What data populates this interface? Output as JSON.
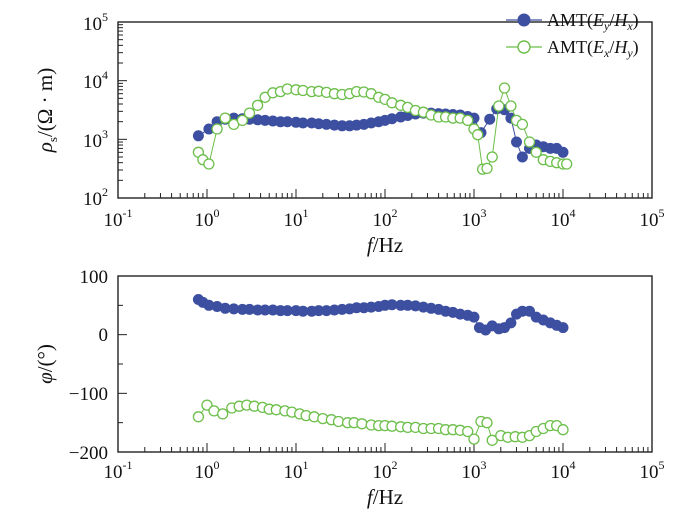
{
  "colors": {
    "ey_hx": "#3d4fa0",
    "ex_hy": "#6cbf4a"
  },
  "legend": {
    "entries": [
      {
        "label_prefix": "AMT(",
        "label_num": "E",
        "label_num_sub": "y",
        "label_slash": "/",
        "label_den": "H",
        "label_den_sub": "x",
        "label_suffix": ")",
        "marker": "filled-circle"
      },
      {
        "label_prefix": "AMT(",
        "label_num": "E",
        "label_num_sub": "x",
        "label_slash": "/",
        "label_den": "H",
        "label_den_sub": "y",
        "label_suffix": ")",
        "marker": "open-circle"
      }
    ]
  },
  "chart_data": [
    {
      "type": "scatter",
      "xscale": "log",
      "yscale": "log",
      "xlim": [
        0.1,
        100000
      ],
      "ylim": [
        100,
        100000
      ],
      "xlabel": {
        "italic": "f",
        "text": "/Hz"
      },
      "ylabel": {
        "sym": "ρ",
        "sub": "s",
        "text": "/(Ω · m)"
      },
      "xticks": [
        {
          "base": "10",
          "exp": "-1"
        },
        {
          "base": "10",
          "exp": "0"
        },
        {
          "base": "10",
          "exp": "1"
        },
        {
          "base": "10",
          "exp": "2"
        },
        {
          "base": "10",
          "exp": "3"
        },
        {
          "base": "10",
          "exp": "4"
        },
        {
          "base": "10",
          "exp": "5"
        }
      ],
      "yticks": [
        {
          "base": "10",
          "exp": "2"
        },
        {
          "base": "10",
          "exp": "3"
        },
        {
          "base": "10",
          "exp": "4"
        },
        {
          "base": "10",
          "exp": "5"
        }
      ],
      "series": [
        {
          "name": "AMT(Ey/Hx)",
          "marker": "filled",
          "x": [
            0.8,
            1.05,
            1.3,
            1.6,
            2.0,
            2.5,
            3.0,
            3.7,
            4.5,
            5.5,
            6.7,
            8.0,
            10,
            12,
            15,
            18,
            22,
            27,
            33,
            40,
            48,
            58,
            70,
            85,
            100,
            120,
            150,
            180,
            220,
            270,
            330,
            400,
            480,
            580,
            700,
            850,
            1000,
            1200,
            1500,
            1800,
            2200,
            2600,
            3000,
            3500,
            4200,
            5000,
            6000,
            7200,
            8500,
            10000
          ],
          "y": [
            1150,
            1500,
            2000,
            2200,
            2300,
            2250,
            2200,
            2150,
            2100,
            2050,
            2000,
            2000,
            1950,
            1900,
            1900,
            1850,
            1800,
            1750,
            1700,
            1700,
            1750,
            1800,
            1900,
            2000,
            2100,
            2250,
            2400,
            2550,
            2700,
            2800,
            2800,
            2750,
            2700,
            2650,
            2600,
            2450,
            2300,
            1300,
            2200,
            3300,
            3200,
            2300,
            900,
            500,
            700,
            800,
            750,
            700,
            700,
            600
          ]
        },
        {
          "name": "AMT(Ex/Hy)",
          "marker": "open",
          "x": [
            0.8,
            0.9,
            1.05,
            1.3,
            1.6,
            2.0,
            2.5,
            3.0,
            3.7,
            4.5,
            5.5,
            6.7,
            8.0,
            10,
            12,
            15,
            18,
            22,
            27,
            33,
            40,
            48,
            58,
            70,
            85,
            100,
            120,
            150,
            180,
            220,
            270,
            330,
            400,
            480,
            580,
            700,
            850,
            1000,
            1100,
            1250,
            1400,
            1600,
            1900,
            2200,
            2600,
            3000,
            3500,
            4200,
            5000,
            6000,
            7200,
            8500,
            10000,
            11000
          ],
          "y": [
            600,
            450,
            380,
            1500,
            2300,
            1800,
            2100,
            2800,
            3800,
            5200,
            6200,
            6500,
            7200,
            7000,
            6800,
            6500,
            6600,
            6300,
            6000,
            5800,
            6000,
            6500,
            6400,
            6000,
            5200,
            4800,
            4200,
            3800,
            3500,
            3100,
            2900,
            2600,
            2400,
            2400,
            2300,
            2300,
            2100,
            1500,
            1200,
            310,
            320,
            500,
            3700,
            7500,
            3700,
            2100,
            1800,
            900,
            600,
            450,
            420,
            400,
            380,
            380
          ]
        }
      ]
    },
    {
      "type": "scatter",
      "xscale": "log",
      "xlim": [
        0.1,
        100000
      ],
      "ylim": [
        -200,
        100
      ],
      "xlabel": {
        "italic": "f",
        "text": "/Hz"
      },
      "ylabel": {
        "sym": "φ",
        "text": "/(°)"
      },
      "xticks": [
        {
          "base": "10",
          "exp": "-1"
        },
        {
          "base": "10",
          "exp": "0"
        },
        {
          "base": "10",
          "exp": "1"
        },
        {
          "base": "10",
          "exp": "2"
        },
        {
          "base": "10",
          "exp": "3"
        },
        {
          "base": "10",
          "exp": "4"
        },
        {
          "base": "10",
          "exp": "5"
        }
      ],
      "yticks": [
        {
          "value": 100,
          "label": "100"
        },
        {
          "value": 0,
          "label": "0"
        },
        {
          "value": -100,
          "label": "−100"
        },
        {
          "value": -200,
          "label": "−200"
        }
      ],
      "series": [
        {
          "name": "AMT(Ey/Hx)",
          "marker": "filled",
          "x": [
            0.8,
            0.9,
            1.05,
            1.3,
            1.6,
            2.0,
            2.5,
            3.0,
            3.7,
            4.5,
            5.5,
            6.7,
            8.0,
            10,
            12,
            15,
            18,
            22,
            27,
            33,
            40,
            48,
            58,
            70,
            85,
            100,
            120,
            150,
            180,
            220,
            270,
            330,
            400,
            480,
            580,
            700,
            850,
            1000,
            1150,
            1350,
            1600,
            1900,
            2200,
            2600,
            3000,
            3500,
            4200,
            5000,
            6000,
            7200,
            8500,
            10000
          ],
          "y": [
            60,
            55,
            50,
            48,
            45,
            44,
            43,
            43,
            42,
            42,
            42,
            41,
            41,
            41,
            40,
            40,
            41,
            41,
            42,
            43,
            44,
            46,
            46,
            47,
            48,
            50,
            51,
            50,
            50,
            49,
            47,
            45,
            43,
            40,
            38,
            35,
            33,
            30,
            12,
            8,
            15,
            10,
            12,
            20,
            35,
            40,
            40,
            30,
            25,
            20,
            16,
            12
          ]
        },
        {
          "name": "AMT(Ex/Hy)",
          "marker": "open",
          "x": [
            0.8,
            1.0,
            1.2,
            1.5,
            1.9,
            2.3,
            2.8,
            3.4,
            4.2,
            5.0,
            6.0,
            7.5,
            9.0,
            11,
            13,
            16,
            20,
            25,
            30,
            38,
            45,
            55,
            70,
            85,
            100,
            120,
            150,
            180,
            220,
            270,
            330,
            400,
            480,
            580,
            700,
            850,
            1000,
            1200,
            1400,
            1600,
            2000,
            2400,
            2900,
            3500,
            4200,
            5000,
            6000,
            7200,
            8500,
            10000
          ],
          "y": [
            -140,
            -120,
            -130,
            -135,
            -125,
            -122,
            -120,
            -122,
            -124,
            -127,
            -128,
            -130,
            -132,
            -135,
            -138,
            -140,
            -143,
            -145,
            -148,
            -150,
            -150,
            -152,
            -154,
            -155,
            -155,
            -156,
            -157,
            -158,
            -158,
            -160,
            -160,
            -160,
            -162,
            -162,
            -163,
            -165,
            -178,
            -148,
            -150,
            -180,
            -172,
            -175,
            -174,
            -175,
            -172,
            -165,
            -160,
            -155,
            -155,
            -162
          ]
        }
      ]
    }
  ]
}
